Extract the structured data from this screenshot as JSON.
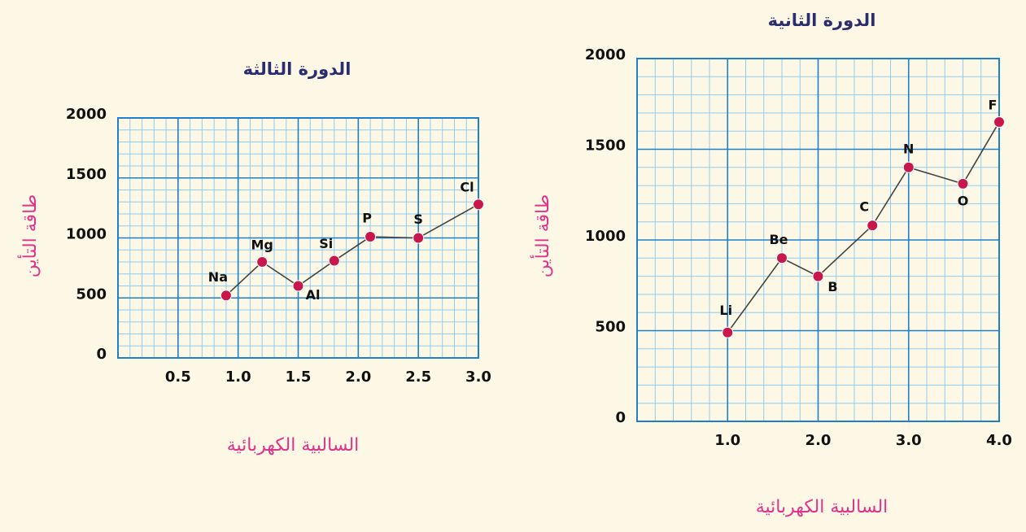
{
  "chart_data": [
    {
      "type": "line",
      "title": "الدورة الثالثة",
      "x_label": "السالبية الكهربائية",
      "y_label": "طاقة التأين",
      "xlim": [
        0,
        3
      ],
      "xticks": [
        0.5,
        {
          "value": 1,
          "label": "1.0"
        },
        1.5,
        {
          "value": 2,
          "label": "2.0"
        },
        2.5,
        {
          "value": 3,
          "label": "3.0"
        }
      ],
      "ylim": [
        0,
        2000
      ],
      "yticks": [
        0,
        500,
        1000,
        1500,
        2000
      ],
      "grid": true,
      "series": [
        {
          "name": "Period 3",
          "color": "#c8174b",
          "point_labels": [
            "Na",
            "Mg",
            "Al",
            "Si",
            "P",
            "S",
            "Cl"
          ],
          "x": [
            0.9,
            1.2,
            1.5,
            1.8,
            2.1,
            2.5,
            3.0
          ],
          "values": [
            520,
            800,
            600,
            810,
            1010,
            1000,
            1280
          ]
        }
      ]
    },
    {
      "type": "line",
      "title": "الدورة الثانية",
      "x_label": "السالبية الكهربائية",
      "y_label": "طاقة التأين",
      "xlim": [
        0,
        4
      ],
      "xticks": [
        {
          "value": 1,
          "label": "1.0"
        },
        {
          "value": 2,
          "label": "2.0"
        },
        {
          "value": 3,
          "label": "3.0"
        },
        {
          "value": 4,
          "label": "4.0"
        }
      ],
      "ylim": [
        0,
        2000
      ],
      "yticks": [
        0,
        500,
        1000,
        1500,
        2000
      ],
      "grid": true,
      "series": [
        {
          "name": "Period 2",
          "color": "#c8174b",
          "point_labels": [
            "Li",
            "Be",
            "B",
            "C",
            "N",
            "O",
            "F"
          ],
          "x": [
            1.0,
            1.6,
            2.0,
            2.6,
            3.0,
            3.6,
            4.0
          ],
          "values": [
            490,
            900,
            800,
            1080,
            1400,
            1310,
            1650
          ]
        }
      ]
    }
  ]
}
